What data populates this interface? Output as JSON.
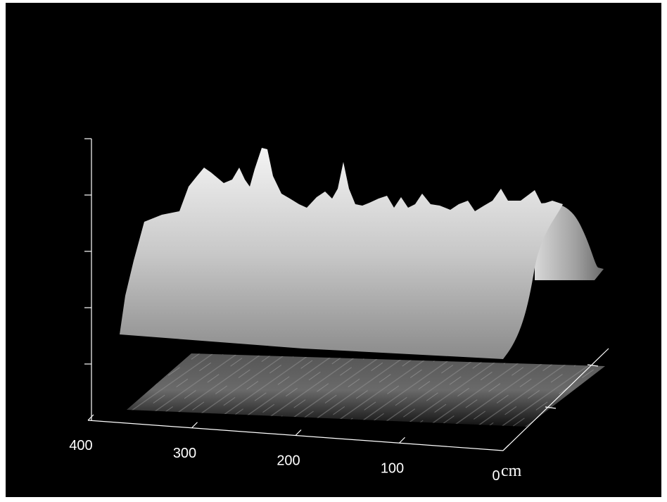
{
  "chart_data": {
    "type": "surface",
    "x_label": "cm",
    "xlim": [
      400,
      0
    ],
    "xticks": [
      0,
      100,
      200,
      300,
      400
    ]
  }
}
